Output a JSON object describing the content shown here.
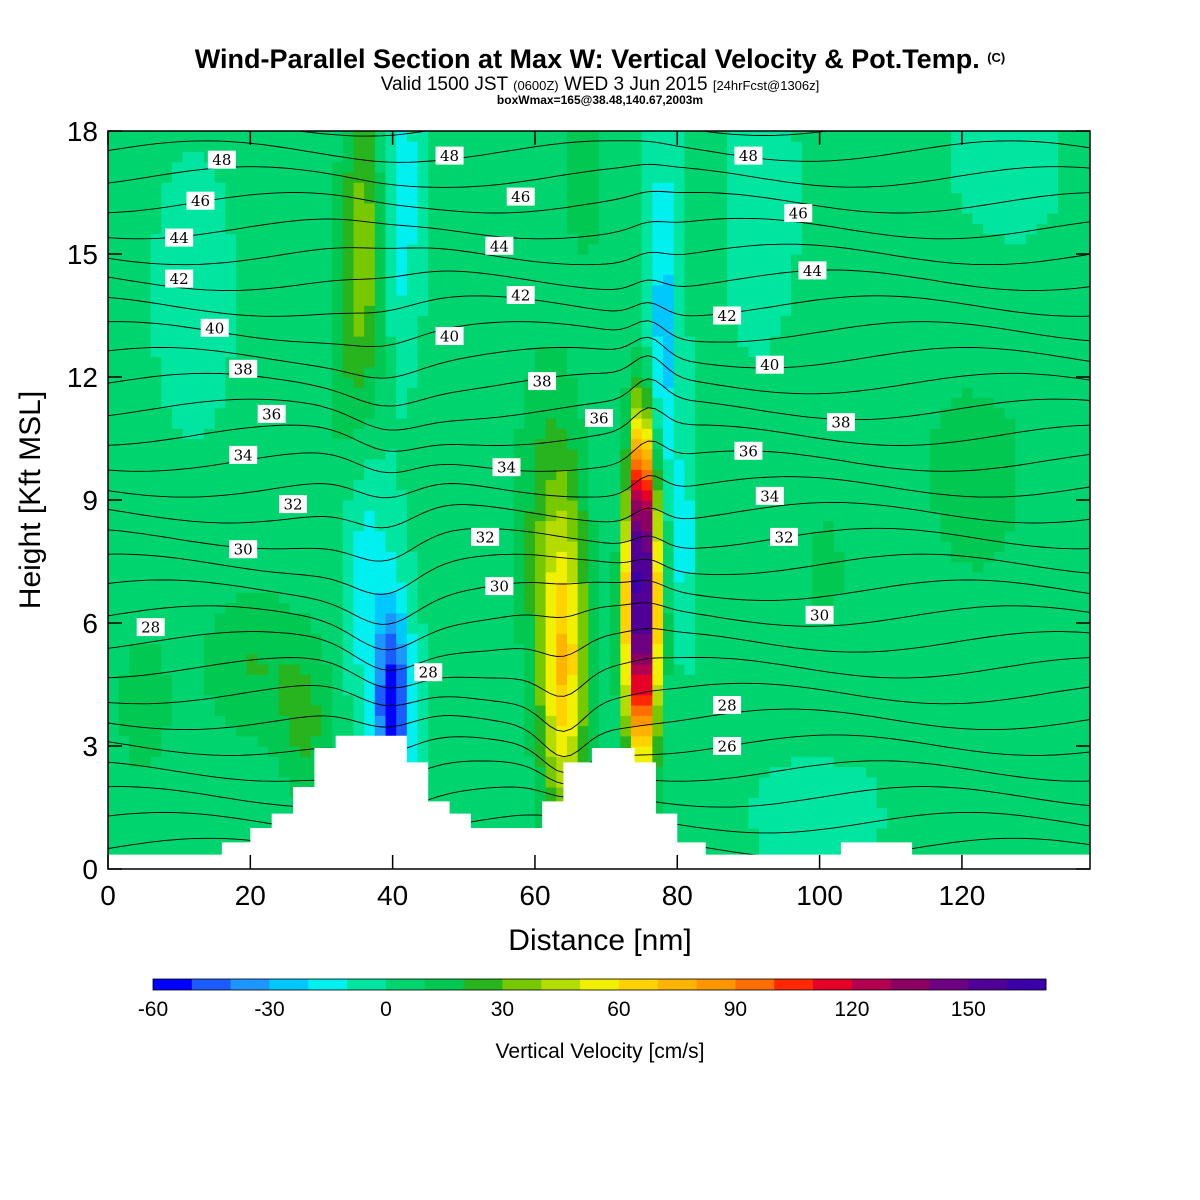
{
  "header": {
    "title": "Wind-Parallel Section at Max W: Vertical Velocity & Pot.Temp.",
    "copyright": "(C)",
    "subtitle_main": "Valid 1500 JST",
    "subtitle_zulu": "(0600Z)",
    "subtitle_date": "WED 3 Jun 2015",
    "subtitle_fcst": "[24hrFcst@1306z]",
    "subtitle2": "boxWmax=165@38.48,140.67,2003m"
  },
  "chart_data": {
    "type": "heatmap",
    "xlabel": "Distance [nm]",
    "ylabel": "Height [Kft MSL]",
    "xlim": [
      0,
      138
    ],
    "ylim": [
      0,
      18
    ],
    "xticks": [
      0,
      20,
      40,
      60,
      80,
      100,
      120
    ],
    "yticks": [
      0,
      3,
      6,
      9,
      12,
      15,
      18
    ],
    "colorbar": {
      "label": "Vertical Velocity [cm/s]",
      "min": -60,
      "max": 170,
      "step": 10,
      "tick_values": [
        -60,
        -30,
        0,
        30,
        60,
        90,
        120,
        150
      ],
      "colors": [
        "#0000ff",
        "#1a5cff",
        "#1e96ff",
        "#00c8ff",
        "#00f0f0",
        "#00e6a0",
        "#00d46e",
        "#00c850",
        "#28b41e",
        "#78c800",
        "#b4dc00",
        "#f0f000",
        "#ffd200",
        "#ffb400",
        "#ff9600",
        "#ff6e00",
        "#ff2800",
        "#e60028",
        "#b40050",
        "#8c0064",
        "#6e0082",
        "#500096",
        "#3c00aa"
      ]
    },
    "terrain": [
      [
        0,
        0.35
      ],
      [
        16,
        0.35
      ],
      [
        16,
        0.65
      ],
      [
        20,
        0.65
      ],
      [
        20,
        1.0
      ],
      [
        23,
        1.0
      ],
      [
        23,
        1.35
      ],
      [
        26,
        1.35
      ],
      [
        26,
        2.0
      ],
      [
        29,
        2.0
      ],
      [
        29,
        2.95
      ],
      [
        32,
        2.95
      ],
      [
        32,
        3.25
      ],
      [
        42,
        3.25
      ],
      [
        42,
        2.6
      ],
      [
        45,
        2.6
      ],
      [
        45,
        1.65
      ],
      [
        48,
        1.65
      ],
      [
        48,
        1.35
      ],
      [
        51,
        1.35
      ],
      [
        51,
        1.0
      ],
      [
        61,
        1.0
      ],
      [
        61,
        1.65
      ],
      [
        64,
        1.65
      ],
      [
        64,
        2.6
      ],
      [
        68,
        2.6
      ],
      [
        68,
        2.95
      ],
      [
        74,
        2.95
      ],
      [
        74,
        2.6
      ],
      [
        77,
        2.6
      ],
      [
        77,
        1.35
      ],
      [
        80,
        1.35
      ],
      [
        80,
        0.65
      ],
      [
        84,
        0.65
      ],
      [
        84,
        0.35
      ],
      [
        103,
        0.35
      ],
      [
        103,
        0.65
      ],
      [
        113,
        0.65
      ],
      [
        113,
        0.35
      ],
      [
        138,
        0.35
      ]
    ],
    "velocity_features": [
      {
        "x": 75,
        "y": 6.5,
        "sx": 1.6,
        "sy": 2.6,
        "amp": 170
      },
      {
        "x": 74.5,
        "y": 9.2,
        "sx": 1.2,
        "sy": 1.4,
        "amp": 45
      },
      {
        "x": 64,
        "y": 4.7,
        "sx": 2.3,
        "sy": 2.6,
        "amp": 60
      },
      {
        "x": 62,
        "y": 8.5,
        "sx": 3.5,
        "sy": 3.0,
        "amp": 22
      },
      {
        "x": 40,
        "y": 4.0,
        "sx": 1.8,
        "sy": 1.7,
        "amp": -60
      },
      {
        "x": 36,
        "y": 7.5,
        "sx": 2.5,
        "sy": 2.5,
        "amp": -22
      },
      {
        "x": 78,
        "y": 13.0,
        "sx": 1.6,
        "sy": 3.0,
        "amp": -28
      },
      {
        "x": 73,
        "y": 9.0,
        "sx": 1.0,
        "sy": 1.3,
        "amp": -25
      },
      {
        "x": 81,
        "y": 8.0,
        "sx": 1.0,
        "sy": 1.6,
        "amp": -18
      },
      {
        "x": 41,
        "y": 16.5,
        "sx": 1.8,
        "sy": 2.5,
        "amp": -22
      },
      {
        "x": 36,
        "y": 15.5,
        "sx": 2.0,
        "sy": 2.8,
        "amp": 28
      },
      {
        "x": 34,
        "y": 12.0,
        "sx": 3.0,
        "sy": 3.5,
        "amp": 14
      },
      {
        "x": 67,
        "y": 17.0,
        "sx": 2.0,
        "sy": 1.5,
        "amp": 18
      },
      {
        "x": 20,
        "y": 5.0,
        "sx": 5.0,
        "sy": 1.4,
        "amp": 18
      },
      {
        "x": 28,
        "y": 3.5,
        "sx": 3.0,
        "sy": 1.5,
        "amp": 18
      },
      {
        "x": 5,
        "y": 4.0,
        "sx": 3.0,
        "sy": 1.5,
        "amp": 14
      },
      {
        "x": 100,
        "y": 7.0,
        "sx": 5.0,
        "sy": 3.0,
        "amp": 8
      },
      {
        "x": 122,
        "y": 10.0,
        "sx": 10.0,
        "sy": 4.0,
        "amp": 10
      },
      {
        "x": 100,
        "y": 1.5,
        "sx": 6.0,
        "sy": 1.2,
        "amp": -8
      },
      {
        "x": 125,
        "y": 16.0,
        "sx": 8.0,
        "sy": 2.5,
        "amp": -6
      },
      {
        "x": 92,
        "y": 16.0,
        "sx": 4.0,
        "sy": 3.0,
        "amp": -5
      },
      {
        "x": 12,
        "y": 14.0,
        "sx": 5.0,
        "sy": 3.0,
        "amp": -4
      }
    ],
    "theta_labels": [
      {
        "text": "48",
        "x": 16,
        "y": 17.3
      },
      {
        "text": "48",
        "x": 48,
        "y": 17.4
      },
      {
        "text": "48",
        "x": 90,
        "y": 17.4
      },
      {
        "text": "46",
        "x": 13,
        "y": 16.3
      },
      {
        "text": "46",
        "x": 58,
        "y": 16.4
      },
      {
        "text": "46",
        "x": 97,
        "y": 16.0
      },
      {
        "text": "44",
        "x": 10,
        "y": 15.4
      },
      {
        "text": "44",
        "x": 55,
        "y": 15.2
      },
      {
        "text": "44",
        "x": 99,
        "y": 14.6
      },
      {
        "text": "42",
        "x": 10,
        "y": 14.4
      },
      {
        "text": "42",
        "x": 58,
        "y": 14.0
      },
      {
        "text": "42",
        "x": 87,
        "y": 13.5
      },
      {
        "text": "40",
        "x": 15,
        "y": 13.2
      },
      {
        "text": "40",
        "x": 48,
        "y": 13.0
      },
      {
        "text": "40",
        "x": 93,
        "y": 12.3
      },
      {
        "text": "38",
        "x": 19,
        "y": 12.2
      },
      {
        "text": "38",
        "x": 61,
        "y": 11.9
      },
      {
        "text": "38",
        "x": 103,
        "y": 10.9
      },
      {
        "text": "36",
        "x": 23,
        "y": 11.1
      },
      {
        "text": "36",
        "x": 69,
        "y": 11.0
      },
      {
        "text": "36",
        "x": 90,
        "y": 10.2
      },
      {
        "text": "34",
        "x": 19,
        "y": 10.1
      },
      {
        "text": "34",
        "x": 56,
        "y": 9.8
      },
      {
        "text": "34",
        "x": 93,
        "y": 9.1
      },
      {
        "text": "32",
        "x": 26,
        "y": 8.9
      },
      {
        "text": "32",
        "x": 53,
        "y": 8.1
      },
      {
        "text": "32",
        "x": 95,
        "y": 8.1
      },
      {
        "text": "30",
        "x": 19,
        "y": 7.8
      },
      {
        "text": "30",
        "x": 55,
        "y": 6.9
      },
      {
        "text": "30",
        "x": 100,
        "y": 6.2
      },
      {
        "text": "28",
        "x": 6,
        "y": 5.9
      },
      {
        "text": "28",
        "x": 45,
        "y": 4.8
      },
      {
        "text": "28",
        "x": 87,
        "y": 4.0
      },
      {
        "text": "26",
        "x": 87,
        "y": 3.0
      }
    ]
  }
}
